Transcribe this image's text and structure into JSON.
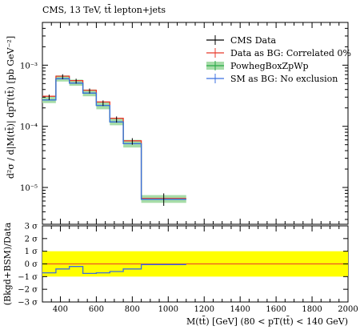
{
  "chart_data": [
    {
      "type": "line",
      "title": "CMS, 13 TeV, tt̄ lepton+jets",
      "xlabel": "M(tt̄) [GeV] (80 < pT(tt̄) < 140 GeV)",
      "ylabel": "d²σ / d|M(tt̄)| dpT(tt̄) [pb GeV⁻²]",
      "yscale": "log",
      "xlim": [
        300,
        2000
      ],
      "ylim": [
        2.5e-06,
        0.005
      ],
      "ytick_labels": [
        "10⁻⁵",
        "10⁻⁴",
        "10⁻³"
      ],
      "bin_edges": [
        300,
        375,
        450,
        525,
        600,
        675,
        750,
        850,
        1100,
        2000
      ],
      "legend_position": "top-right",
      "series": [
        {
          "name": "CMS Data",
          "color": "#000000",
          "style": "points",
          "values": [
            0.0003,
            0.00065,
            0.00055,
            0.00038,
            0.00024,
            0.00013,
            5.7e-05,
            6.5e-06
          ],
          "errors": [
            3e-05,
            6e-05,
            5e-05,
            3.5e-05,
            2.5e-05,
            1.5e-05,
            7e-06,
            1.5e-06
          ]
        },
        {
          "name": "Data as BG: Correlated 0%",
          "color": "#e8392b",
          "style": "step",
          "values": [
            0.00031,
            0.00066,
            0.00056,
            0.00039,
            0.00025,
            0.000135,
            5.8e-05,
            6.6e-06
          ]
        },
        {
          "name": "PowhegBoxZpWp",
          "color": "#26a844",
          "band_color": "#a6dca8",
          "style": "step-band",
          "values": [
            0.00027,
            0.0006,
            0.00051,
            0.00035,
            0.00022,
            0.000118,
            5.2e-05,
            6.4e-06
          ],
          "band_low": [
            0.00024,
            0.00054,
            0.00046,
            0.00031,
            0.00019,
            0.000104,
            4.5e-05,
            5.6e-06
          ],
          "band_high": [
            0.00031,
            0.00068,
            0.00058,
            0.0004,
            0.00025,
            0.000133,
            6e-05,
            7.5e-06
          ]
        },
        {
          "name": "SM as BG: No exclusion",
          "color": "#3b6fe0",
          "style": "step",
          "values": [
            0.00027,
            0.0006,
            0.00051,
            0.00035,
            0.00022,
            0.000118,
            5.2e-05,
            6.4e-06
          ]
        }
      ]
    },
    {
      "type": "line",
      "ylabel": "(Bkgd+BSM)/Data",
      "xlim": [
        300,
        2000
      ],
      "ylim": [
        -3,
        3
      ],
      "yticks": [
        -3,
        -2,
        -1,
        0,
        1,
        2,
        3
      ],
      "ytick_labels": [
        "−3 σ",
        "−2 σ",
        "−1 σ",
        "0 σ",
        "1 σ",
        "2 σ",
        "3 σ"
      ],
      "xticks": [
        400,
        600,
        800,
        1000,
        1200,
        1400,
        1600,
        1800,
        2000
      ],
      "band": {
        "low": -1,
        "high": 1,
        "color": "#ffff00"
      },
      "reference": {
        "value": 0,
        "color": "#e8392b"
      },
      "series": [
        {
          "name": "SM as BG: No exclusion",
          "color": "#3b6fe0",
          "style": "step",
          "values": [
            -0.7,
            -0.4,
            -0.2,
            -0.75,
            -0.7,
            -0.6,
            -0.4,
            -0.05
          ]
        }
      ]
    }
  ]
}
